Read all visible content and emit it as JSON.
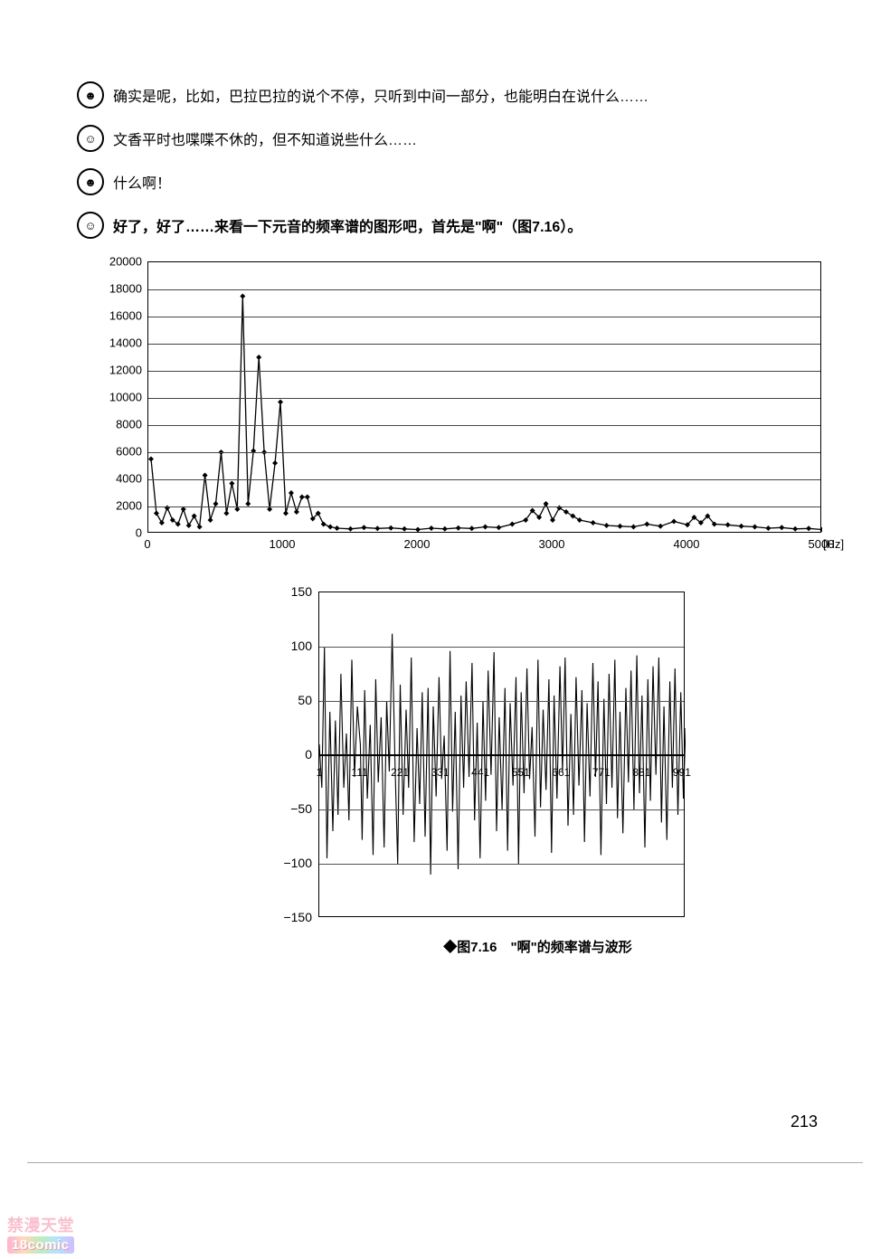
{
  "dialogue": [
    {
      "avatar": "☻",
      "text": "确实是呢，比如，巴拉巴拉的说个不停，只听到中间一部分，也能明白在说什么……",
      "bold": false
    },
    {
      "avatar": "☺",
      "text": "文香平时也喋喋不休的，但不知道说些什么……",
      "bold": false
    },
    {
      "avatar": "☻",
      "text": "什么啊！",
      "bold": false
    },
    {
      "avatar": "☺",
      "text": "好了，好了……来看一下元音的频率谱的图形吧，首先是\"啊\"（图7.16）。",
      "bold": true
    }
  ],
  "spectrum_chart": {
    "type": "line+marker",
    "x_unit": "[Hz]",
    "xlim": [
      0,
      5000
    ],
    "ylim": [
      0,
      20000
    ],
    "x_ticks": [
      0,
      1000,
      2000,
      3000,
      4000,
      5000
    ],
    "y_ticks": [
      0,
      2000,
      4000,
      6000,
      8000,
      10000,
      12000,
      14000,
      16000,
      18000,
      20000
    ],
    "plot_bg": "#ffffff",
    "grid_color": "#444444",
    "line_color": "#000000",
    "marker": "diamond",
    "marker_color": "#000000",
    "label_fontsize": 13,
    "data": [
      [
        20,
        5500
      ],
      [
        60,
        1500
      ],
      [
        100,
        800
      ],
      [
        140,
        1900
      ],
      [
        180,
        1000
      ],
      [
        220,
        700
      ],
      [
        260,
        1800
      ],
      [
        300,
        600
      ],
      [
        340,
        1300
      ],
      [
        380,
        500
      ],
      [
        420,
        4300
      ],
      [
        460,
        1000
      ],
      [
        500,
        2200
      ],
      [
        540,
        6000
      ],
      [
        580,
        1500
      ],
      [
        620,
        3700
      ],
      [
        660,
        1800
      ],
      [
        700,
        17500
      ],
      [
        740,
        2200
      ],
      [
        780,
        6100
      ],
      [
        820,
        13000
      ],
      [
        860,
        6000
      ],
      [
        900,
        1800
      ],
      [
        940,
        5200
      ],
      [
        980,
        9700
      ],
      [
        1020,
        1500
      ],
      [
        1060,
        3000
      ],
      [
        1100,
        1600
      ],
      [
        1140,
        2700
      ],
      [
        1180,
        2700
      ],
      [
        1220,
        1100
      ],
      [
        1260,
        1500
      ],
      [
        1300,
        700
      ],
      [
        1350,
        500
      ],
      [
        1400,
        400
      ],
      [
        1500,
        350
      ],
      [
        1600,
        450
      ],
      [
        1700,
        380
      ],
      [
        1800,
        420
      ],
      [
        1900,
        350
      ],
      [
        2000,
        300
      ],
      [
        2100,
        400
      ],
      [
        2200,
        350
      ],
      [
        2300,
        420
      ],
      [
        2400,
        380
      ],
      [
        2500,
        500
      ],
      [
        2600,
        450
      ],
      [
        2700,
        700
      ],
      [
        2800,
        1000
      ],
      [
        2850,
        1700
      ],
      [
        2900,
        1200
      ],
      [
        2950,
        2200
      ],
      [
        3000,
        1000
      ],
      [
        3050,
        1900
      ],
      [
        3100,
        1600
      ],
      [
        3150,
        1300
      ],
      [
        3200,
        1000
      ],
      [
        3300,
        800
      ],
      [
        3400,
        600
      ],
      [
        3500,
        550
      ],
      [
        3600,
        500
      ],
      [
        3700,
        700
      ],
      [
        3800,
        550
      ],
      [
        3900,
        900
      ],
      [
        4000,
        650
      ],
      [
        4050,
        1200
      ],
      [
        4100,
        800
      ],
      [
        4150,
        1300
      ],
      [
        4200,
        700
      ],
      [
        4300,
        650
      ],
      [
        4400,
        550
      ],
      [
        4500,
        500
      ],
      [
        4600,
        400
      ],
      [
        4700,
        450
      ],
      [
        4800,
        350
      ],
      [
        4900,
        380
      ],
      [
        5000,
        300
      ]
    ]
  },
  "waveform_chart": {
    "type": "line",
    "xlim": [
      1,
      1001
    ],
    "ylim": [
      -150,
      150
    ],
    "y_ticks": [
      -150,
      -100,
      -50,
      0,
      50,
      100,
      150
    ],
    "x_ticks": [
      1,
      111,
      221,
      331,
      441,
      551,
      661,
      771,
      881,
      991
    ],
    "plot_bg": "#ffffff",
    "grid_color": "#555555",
    "line_color": "#000000",
    "label_fontsize": 14,
    "data": [
      [
        1,
        10
      ],
      [
        8,
        -30
      ],
      [
        15,
        100
      ],
      [
        22,
        -95
      ],
      [
        30,
        40
      ],
      [
        38,
        -70
      ],
      [
        45,
        32
      ],
      [
        52,
        -55
      ],
      [
        60,
        75
      ],
      [
        68,
        -30
      ],
      [
        75,
        20
      ],
      [
        82,
        -60
      ],
      [
        90,
        88
      ],
      [
        97,
        -20
      ],
      [
        105,
        45
      ],
      [
        113,
        10
      ],
      [
        118,
        -78
      ],
      [
        125,
        60
      ],
      [
        132,
        -40
      ],
      [
        140,
        28
      ],
      [
        148,
        -92
      ],
      [
        155,
        70
      ],
      [
        162,
        -25
      ],
      [
        170,
        35
      ],
      [
        178,
        -85
      ],
      [
        185,
        50
      ],
      [
        192,
        -15
      ],
      [
        200,
        112
      ],
      [
        208,
        -10
      ],
      [
        215,
        -100
      ],
      [
        222,
        65
      ],
      [
        230,
        -55
      ],
      [
        238,
        42
      ],
      [
        245,
        -30
      ],
      [
        252,
        90
      ],
      [
        260,
        -80
      ],
      [
        268,
        25
      ],
      [
        275,
        -45
      ],
      [
        282,
        58
      ],
      [
        290,
        -75
      ],
      [
        298,
        62
      ],
      [
        305,
        -110
      ],
      [
        312,
        45
      ],
      [
        320,
        -38
      ],
      [
        328,
        72
      ],
      [
        335,
        -22
      ],
      [
        342,
        18
      ],
      [
        350,
        -88
      ],
      [
        358,
        96
      ],
      [
        365,
        -52
      ],
      [
        372,
        40
      ],
      [
        380,
        -105
      ],
      [
        388,
        55
      ],
      [
        395,
        -30
      ],
      [
        402,
        68
      ],
      [
        410,
        -20
      ],
      [
        418,
        85
      ],
      [
        425,
        -60
      ],
      [
        432,
        30
      ],
      [
        440,
        -95
      ],
      [
        448,
        50
      ],
      [
        455,
        -42
      ],
      [
        462,
        78
      ],
      [
        470,
        -18
      ],
      [
        478,
        95
      ],
      [
        485,
        -70
      ],
      [
        492,
        35
      ],
      [
        500,
        -50
      ],
      [
        508,
        62
      ],
      [
        515,
        -88
      ],
      [
        522,
        48
      ],
      [
        530,
        -28
      ],
      [
        538,
        72
      ],
      [
        545,
        -100
      ],
      [
        552,
        58
      ],
      [
        560,
        -35
      ],
      [
        568,
        80
      ],
      [
        575,
        -22
      ],
      [
        582,
        26
      ],
      [
        590,
        -75
      ],
      [
        598,
        88
      ],
      [
        605,
        -48
      ],
      [
        612,
        42
      ],
      [
        620,
        -32
      ],
      [
        628,
        70
      ],
      [
        635,
        -90
      ],
      [
        642,
        55
      ],
      [
        650,
        -40
      ],
      [
        658,
        82
      ],
      [
        665,
        -15
      ],
      [
        672,
        90
      ],
      [
        680,
        -65
      ],
      [
        688,
        38
      ],
      [
        695,
        -55
      ],
      [
        702,
        72
      ],
      [
        710,
        -28
      ],
      [
        718,
        60
      ],
      [
        725,
        -80
      ],
      [
        732,
        48
      ],
      [
        740,
        -38
      ],
      [
        748,
        85
      ],
      [
        755,
        -20
      ],
      [
        762,
        68
      ],
      [
        770,
        -92
      ],
      [
        778,
        52
      ],
      [
        785,
        -45
      ],
      [
        792,
        75
      ],
      [
        800,
        -30
      ],
      [
        808,
        88
      ],
      [
        815,
        -58
      ],
      [
        822,
        40
      ],
      [
        830,
        -72
      ],
      [
        838,
        62
      ],
      [
        845,
        -25
      ],
      [
        852,
        78
      ],
      [
        860,
        -50
      ],
      [
        868,
        92
      ],
      [
        875,
        -35
      ],
      [
        882,
        55
      ],
      [
        890,
        -85
      ],
      [
        898,
        70
      ],
      [
        905,
        -42
      ],
      [
        912,
        82
      ],
      [
        920,
        -18
      ],
      [
        928,
        90
      ],
      [
        935,
        -62
      ],
      [
        942,
        45
      ],
      [
        950,
        -78
      ],
      [
        958,
        68
      ],
      [
        965,
        -30
      ],
      [
        972,
        80
      ],
      [
        980,
        -55
      ],
      [
        988,
        58
      ],
      [
        995,
        -40
      ],
      [
        1001,
        25
      ]
    ]
  },
  "caption": "◆图7.16　\"啊\"的频率谱与波形",
  "page_number": "213",
  "watermark": {
    "line1": "禁漫天堂",
    "line2": "18comic"
  }
}
